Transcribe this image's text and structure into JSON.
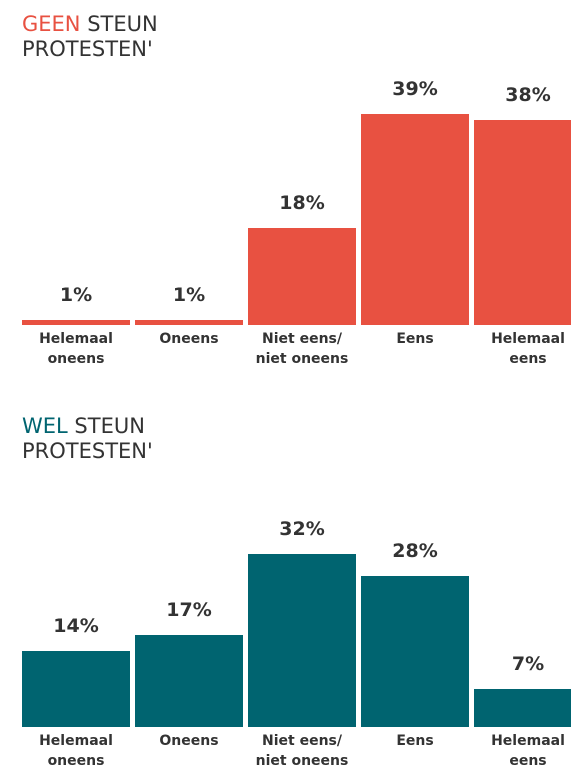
{
  "chart_data": [
    {
      "type": "bar",
      "title_highlight": "GEEN",
      "title": "STEUN PROTESTEN'",
      "color": "#e85141",
      "categories": [
        "Helemaal oneens",
        "Oneens",
        "Niet eens/ niet oneens",
        "Eens",
        "Helemaal eens"
      ],
      "values": [
        1,
        1,
        18,
        39,
        38
      ],
      "value_labels": [
        "1%",
        "1%",
        "18%",
        "39%",
        "38%"
      ]
    },
    {
      "type": "bar",
      "title_highlight": "WEL",
      "title": "STEUN PROTESTEN'",
      "color": "#006470",
      "categories": [
        "Helemaal oneens",
        "Oneens",
        "Niet eens/ niet oneens",
        "Eens",
        "Helemaal eens"
      ],
      "values": [
        14,
        17,
        32,
        28,
        7
      ],
      "value_labels": [
        "14%",
        "17%",
        "32%",
        "28%",
        "7%"
      ]
    }
  ]
}
